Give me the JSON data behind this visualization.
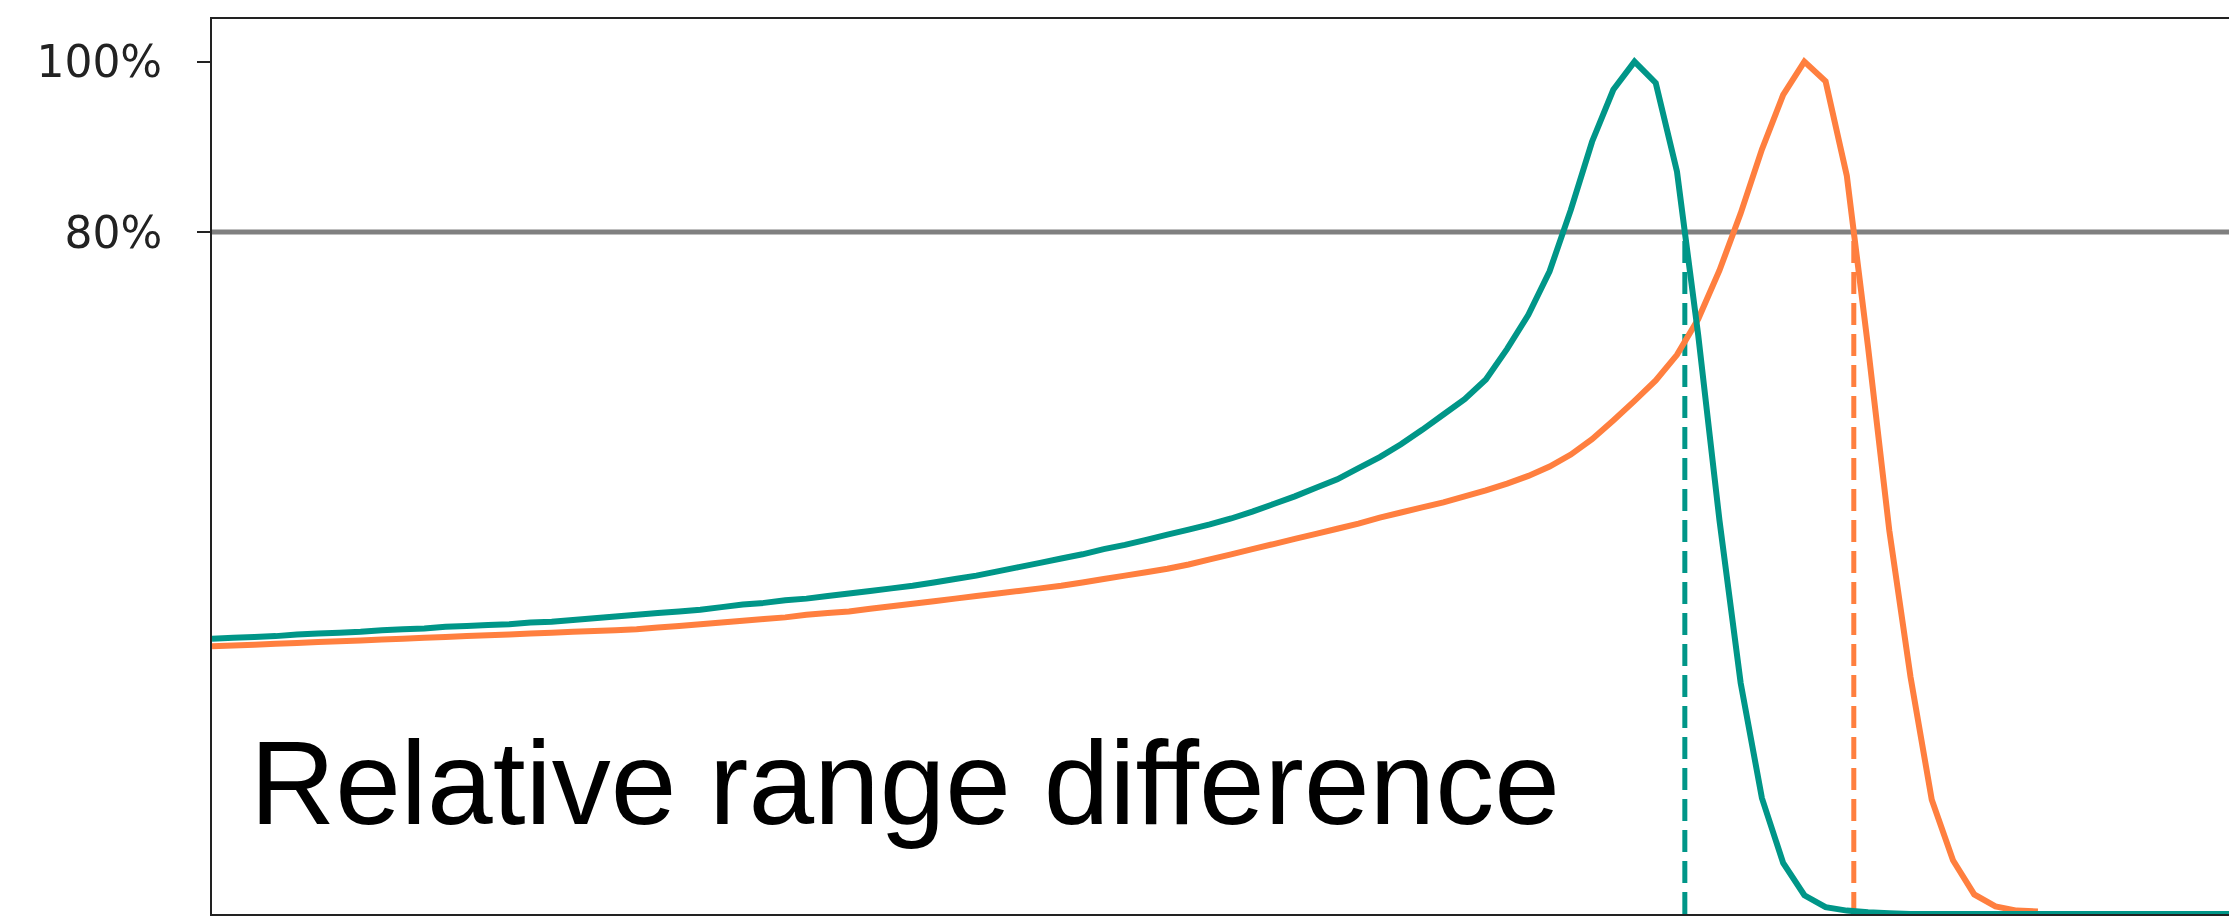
{
  "chart_data": {
    "type": "line",
    "categories": [
      null,
      null,
      null,
      null,
      null,
      null,
      null,
      null,
      null,
      null,
      null,
      null,
      null,
      null,
      null,
      null,
      null,
      null,
      null,
      null,
      null,
      null,
      null,
      null,
      null,
      null,
      null,
      null,
      null,
      null,
      null,
      null,
      null,
      null,
      null,
      null,
      null,
      null,
      null,
      null,
      null,
      null,
      null,
      null,
      null,
      null,
      null,
      null,
      null,
      null,
      null,
      null,
      null,
      null,
      null,
      null,
      null,
      null,
      null,
      null,
      null,
      null,
      null,
      null,
      null,
      null,
      null,
      null,
      null,
      null,
      null,
      null,
      null,
      null,
      null,
      null,
      null,
      null,
      null,
      null,
      null,
      null,
      null,
      null,
      null,
      null,
      null,
      null,
      null,
      null,
      null,
      null,
      null,
      null,
      null,
      null
    ],
    "series": [
      {
        "color": "#ff7f3f",
        "values": [
          31.4,
          31.5,
          31.6,
          31.7,
          31.8,
          31.9,
          32.0,
          32.1,
          32.2,
          32.3,
          32.4,
          32.5,
          32.6,
          32.7,
          32.8,
          32.9,
          33.0,
          33.1,
          33.2,
          33.3,
          33.4,
          33.6,
          33.8,
          34.0,
          34.2,
          34.4,
          34.6,
          34.8,
          35.1,
          35.3,
          35.5,
          35.8,
          36.1,
          36.4,
          36.7,
          37.0,
          37.3,
          37.6,
          37.9,
          38.2,
          38.5,
          38.9,
          39.3,
          39.7,
          40.1,
          40.5,
          41.0,
          41.6,
          42.2,
          42.8,
          43.4,
          44.0,
          44.6,
          45.2,
          45.8,
          46.5,
          47.1,
          47.7,
          48.3,
          49.0,
          49.7,
          50.5,
          51.4,
          52.5,
          53.9,
          55.7,
          57.9,
          60.2,
          62.6,
          65.6,
          69.8,
          75.5,
          82.2,
          89.7,
          96.1,
          100,
          97.7,
          86.6,
          66.5,
          45.0,
          27.8,
          13.4,
          6.3,
          2.3,
          0.9,
          0.4,
          0.3,
          null,
          null,
          null,
          null,
          null,
          null,
          null,
          null,
          null
        ]
      },
      {
        "color": "#009688",
        "values": [
          32.3,
          32.4,
          32.5,
          32.6,
          32.8,
          32.9,
          33.0,
          33.1,
          33.3,
          33.4,
          33.5,
          33.7,
          33.8,
          33.9,
          34.0,
          34.2,
          34.3,
          34.5,
          34.7,
          34.9,
          35.1,
          35.3,
          35.5,
          35.7,
          36.0,
          36.3,
          36.5,
          36.8,
          37.0,
          37.3,
          37.6,
          37.9,
          38.2,
          38.5,
          38.9,
          39.3,
          39.7,
          40.2,
          40.7,
          41.2,
          41.7,
          42.2,
          42.8,
          43.3,
          43.9,
          44.5,
          45.1,
          45.7,
          46.4,
          47.2,
          48.1,
          49.0,
          50.0,
          51.0,
          52.3,
          53.6,
          55.1,
          56.8,
          58.6,
          60.4,
          62.7,
          66.3,
          70.3,
          75.4,
          82.6,
          90.6,
          96.7,
          100,
          97.5,
          87.1,
          67.9,
          46.2,
          27.1,
          13.6,
          6.0,
          2.2,
          0.8,
          0.4,
          0.2,
          0.1,
          0,
          0,
          0,
          0,
          0,
          0,
          0,
          0,
          0,
          0,
          0,
          0,
          0,
          0,
          0,
          0
        ]
      }
    ],
    "ylim": [
      0,
      105
    ],
    "yticks": [
      {
        "value": 100,
        "label": "100%"
      },
      {
        "value": 80,
        "label": "80%"
      }
    ],
    "tick_labels": "y",
    "ref_lines": [
      {
        "axis": "y",
        "value": 80,
        "color": "#808080",
        "line_style": "solid"
      }
    ],
    "annotations": [
      "Relative range difference"
    ]
  }
}
